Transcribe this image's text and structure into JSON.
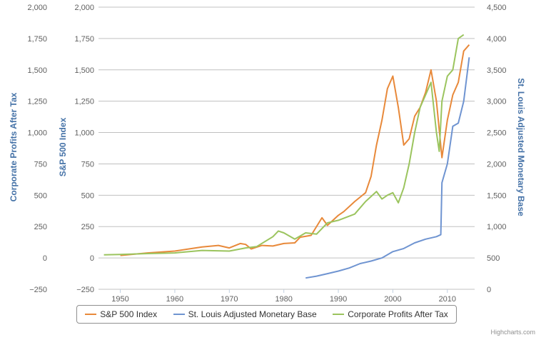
{
  "credits": "Highcharts.com",
  "chart_data": {
    "type": "line",
    "x_ticks": [
      "1950",
      "1960",
      "1970",
      "1980",
      "1990",
      "2000",
      "2010"
    ],
    "x_range": [
      1946,
      2015
    ],
    "axes": [
      {
        "id": "profits",
        "title": "Corporate Profits After Tax",
        "side": "left-outer",
        "ticks": [
          "2,000",
          "1,750",
          "1,500",
          "1,250",
          "1,000",
          "750",
          "500",
          "250",
          "0",
          "−250"
        ],
        "range": [
          -250,
          2000
        ]
      },
      {
        "id": "sp500",
        "title": "S&P 500 Index",
        "side": "left-inner",
        "ticks": [
          "2,000",
          "1,750",
          "1,500",
          "1,250",
          "1,000",
          "750",
          "500",
          "250",
          "0",
          "−250"
        ],
        "range": [
          -250,
          2000
        ]
      },
      {
        "id": "base",
        "title": "St. Louis Adjusted Monetary Base",
        "side": "right",
        "ticks": [
          "4,500",
          "4,000",
          "3,500",
          "3,000",
          "2,500",
          "2,000",
          "1,500",
          "1,000",
          "500",
          "0"
        ],
        "range": [
          0,
          4500
        ]
      }
    ],
    "grid": true,
    "legend": "bottom",
    "series": [
      {
        "name": "S&P 500 Index",
        "axis": "sp500",
        "color": "#E8893A",
        "points": [
          [
            1950,
            20
          ],
          [
            1955,
            40
          ],
          [
            1960,
            55
          ],
          [
            1965,
            88
          ],
          [
            1968,
            100
          ],
          [
            1970,
            80
          ],
          [
            1972,
            115
          ],
          [
            1973,
            108
          ],
          [
            1974,
            72
          ],
          [
            1976,
            100
          ],
          [
            1978,
            95
          ],
          [
            1980,
            115
          ],
          [
            1982,
            120
          ],
          [
            1983,
            165
          ],
          [
            1985,
            180
          ],
          [
            1987,
            320
          ],
          [
            1988,
            260
          ],
          [
            1990,
            340
          ],
          [
            1991,
            370
          ],
          [
            1993,
            450
          ],
          [
            1995,
            520
          ],
          [
            1996,
            650
          ],
          [
            1997,
            900
          ],
          [
            1998,
            1100
          ],
          [
            1999,
            1350
          ],
          [
            2000,
            1450
          ],
          [
            2001,
            1200
          ],
          [
            2002,
            900
          ],
          [
            2003,
            950
          ],
          [
            2004,
            1130
          ],
          [
            2005,
            1200
          ],
          [
            2006,
            1320
          ],
          [
            2007,
            1500
          ],
          [
            2008,
            1250
          ],
          [
            2009,
            800
          ],
          [
            2010,
            1100
          ],
          [
            2011,
            1300
          ],
          [
            2012,
            1400
          ],
          [
            2013,
            1650
          ],
          [
            2014,
            1700
          ]
        ]
      },
      {
        "name": "St. Louis Adjusted Monetary Base",
        "axis": "base",
        "color": "#6F94D1",
        "points": [
          [
            1984,
            180
          ],
          [
            1986,
            210
          ],
          [
            1988,
            250
          ],
          [
            1990,
            290
          ],
          [
            1992,
            340
          ],
          [
            1994,
            410
          ],
          [
            1996,
            450
          ],
          [
            1998,
            500
          ],
          [
            2000,
            600
          ],
          [
            2002,
            650
          ],
          [
            2004,
            740
          ],
          [
            2006,
            800
          ],
          [
            2008,
            840
          ],
          [
            2008.8,
            870
          ],
          [
            2009,
            1700
          ],
          [
            2010,
            2000
          ],
          [
            2011,
            2600
          ],
          [
            2012,
            2650
          ],
          [
            2013,
            3000
          ],
          [
            2014,
            3700
          ]
        ]
      },
      {
        "name": "Corporate Profits After Tax",
        "axis": "profits",
        "color": "#9BC45E",
        "points": [
          [
            1947,
            25
          ],
          [
            1950,
            28
          ],
          [
            1955,
            35
          ],
          [
            1960,
            40
          ],
          [
            1965,
            60
          ],
          [
            1970,
            55
          ],
          [
            1973,
            80
          ],
          [
            1975,
            90
          ],
          [
            1978,
            170
          ],
          [
            1979,
            215
          ],
          [
            1980,
            200
          ],
          [
            1982,
            150
          ],
          [
            1984,
            200
          ],
          [
            1986,
            190
          ],
          [
            1988,
            280
          ],
          [
            1990,
            300
          ],
          [
            1993,
            350
          ],
          [
            1995,
            450
          ],
          [
            1997,
            530
          ],
          [
            1998,
            470
          ],
          [
            1999,
            500
          ],
          [
            2000,
            520
          ],
          [
            2001,
            440
          ],
          [
            2002,
            560
          ],
          [
            2003,
            750
          ],
          [
            2004,
            1000
          ],
          [
            2005,
            1200
          ],
          [
            2006,
            1300
          ],
          [
            2007,
            1400
          ],
          [
            2008,
            1000
          ],
          [
            2008.5,
            850
          ],
          [
            2009,
            1250
          ],
          [
            2010,
            1450
          ],
          [
            2011,
            1500
          ],
          [
            2012,
            1750
          ],
          [
            2013,
            1780
          ]
        ]
      }
    ]
  }
}
